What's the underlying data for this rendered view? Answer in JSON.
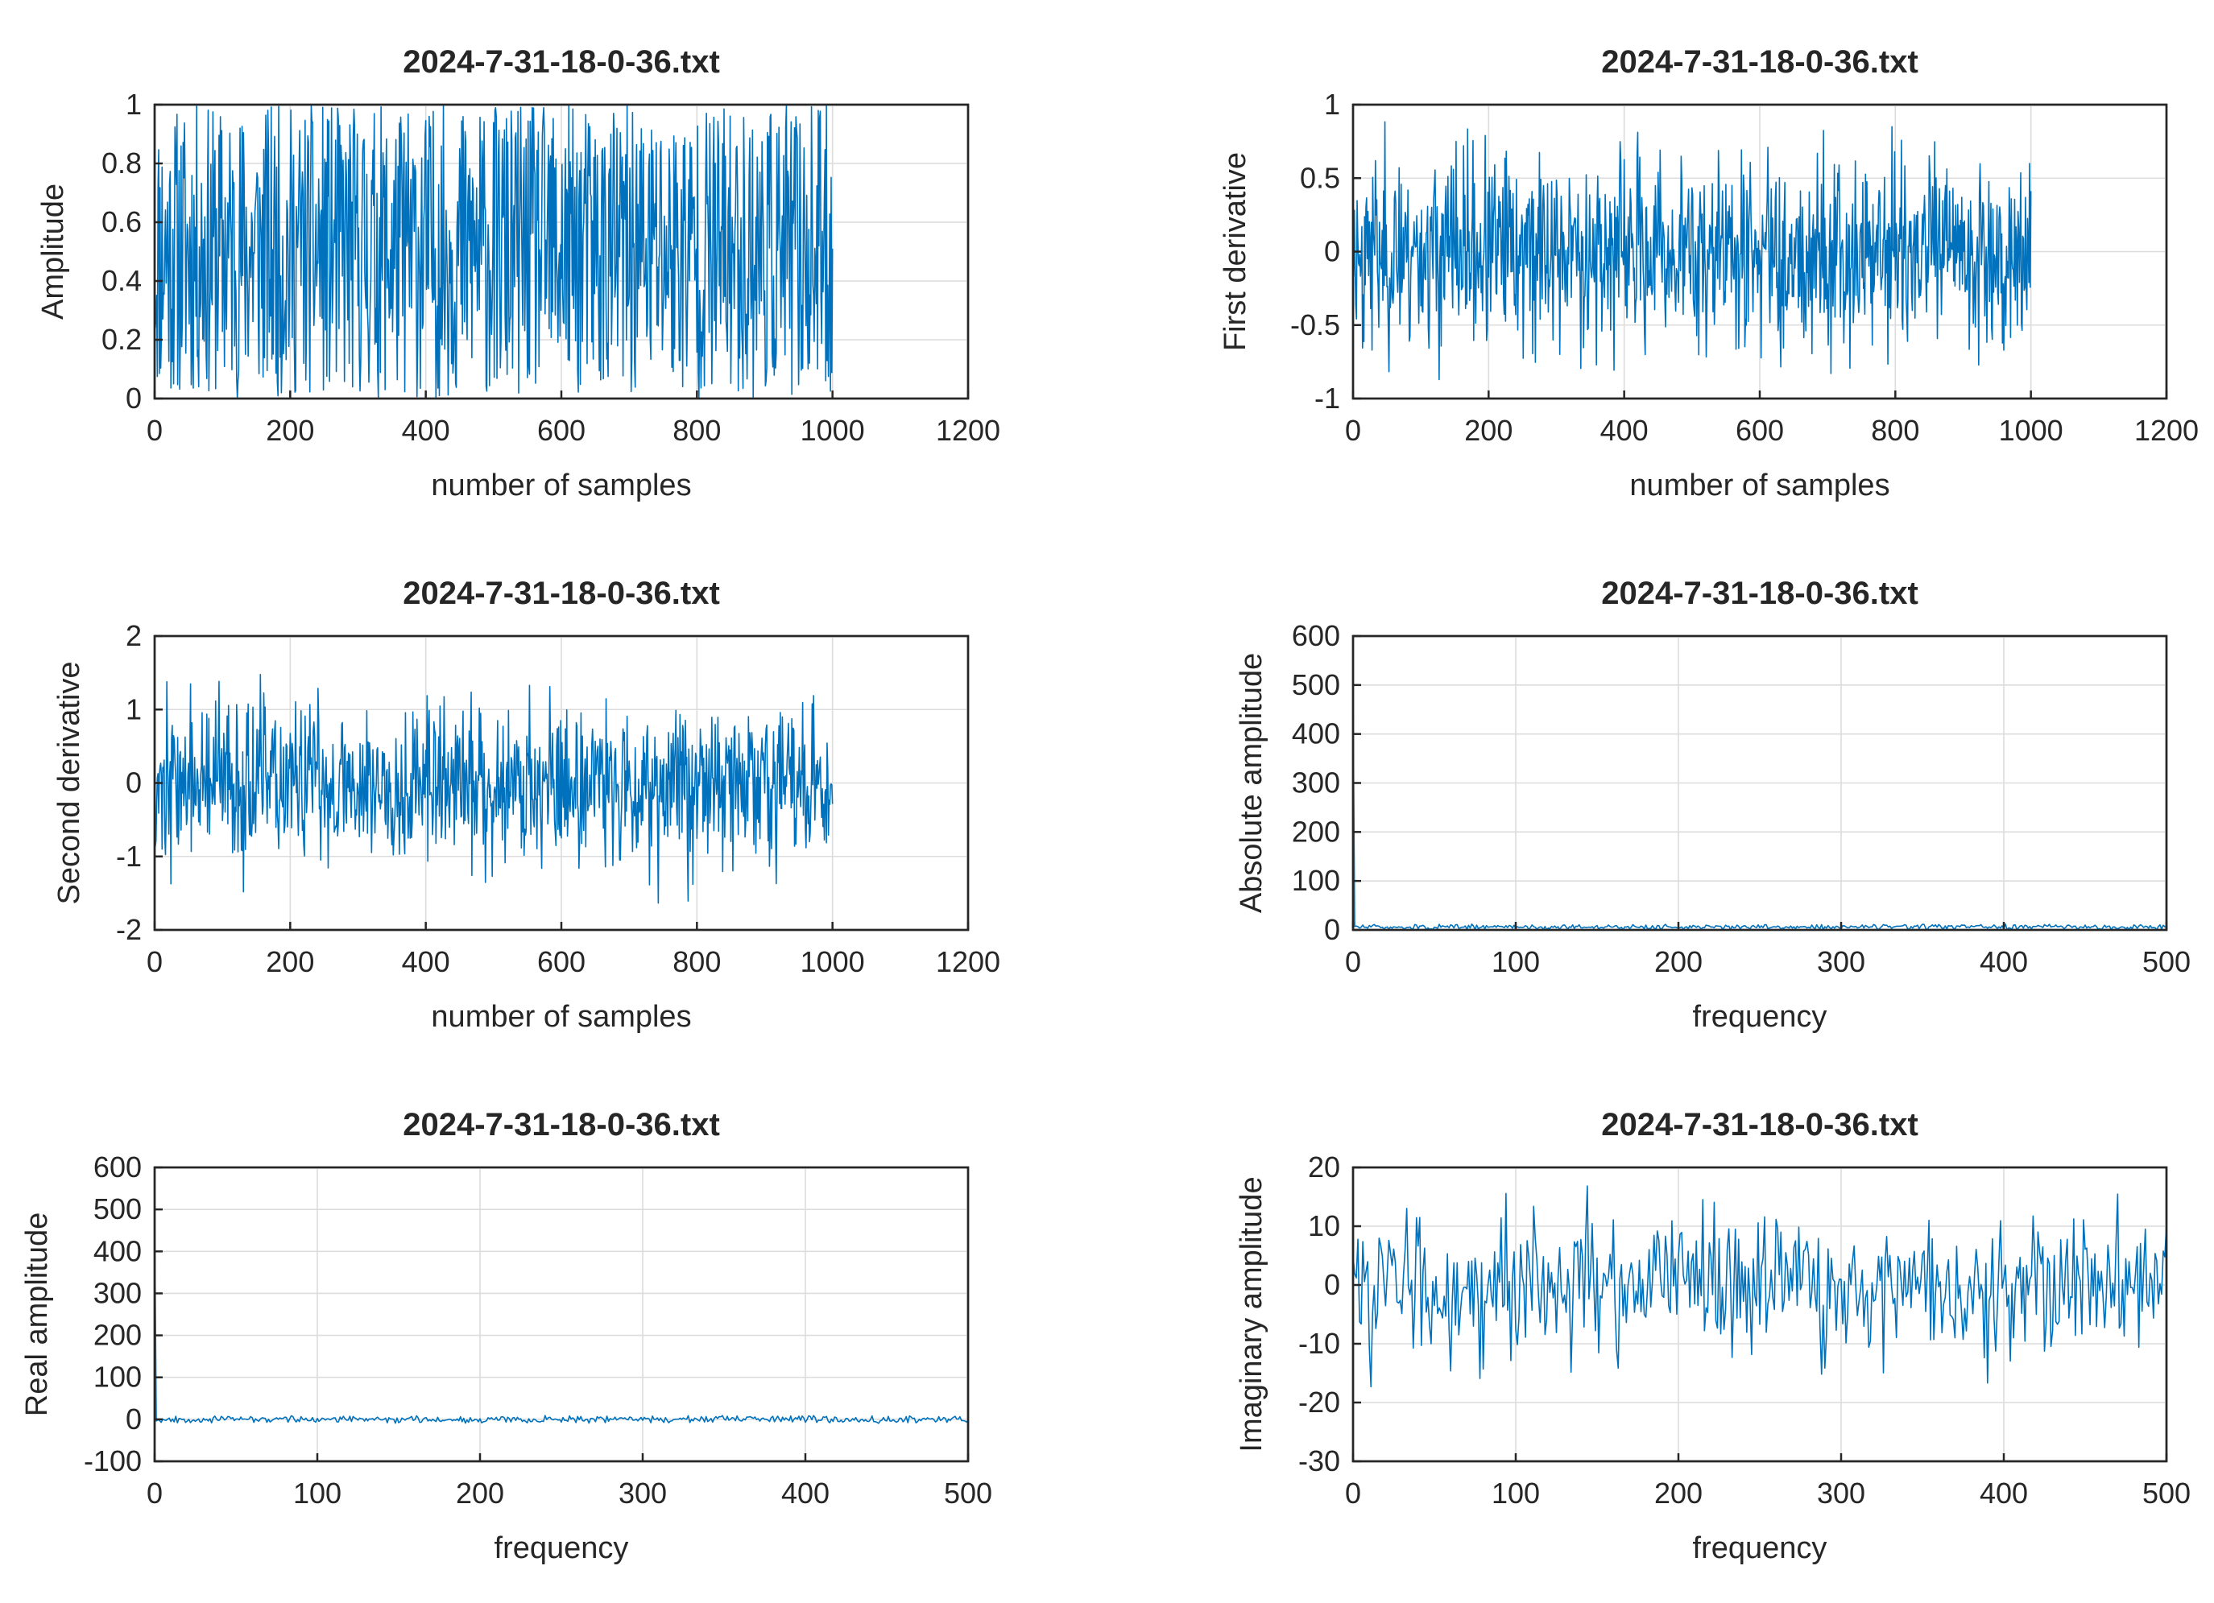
{
  "colors": {
    "series": "#0072BD",
    "axis": "#262626",
    "grid": "#dcdcdc"
  },
  "chart_data": [
    {
      "id": "amplitude",
      "type": "line",
      "title": "2024-7-31-18-0-36.txt",
      "xlabel": "number of samples",
      "ylabel": "Amplitude",
      "xlim": [
        0,
        1200
      ],
      "ylim": [
        0,
        1
      ],
      "xticks": [
        0,
        200,
        400,
        600,
        800,
        1000,
        1200
      ],
      "yticks": [
        0,
        0.2,
        0.4,
        0.6,
        0.8,
        1
      ],
      "xtick_labels": [
        "0",
        "200",
        "400",
        "600",
        "800",
        "1000",
        "1200"
      ],
      "ytick_labels": [
        "0",
        "0.2",
        "0.4",
        "0.6",
        "0.8",
        "1"
      ],
      "grid": true,
      "series": [
        {
          "generator": "uniform",
          "x_range": [
            1,
            1000
          ],
          "count": 1000,
          "y_range": [
            0,
            1
          ],
          "seed": 11
        }
      ]
    },
    {
      "id": "first-derivative",
      "type": "line",
      "title": "2024-7-31-18-0-36.txt",
      "xlabel": "number of samples",
      "ylabel": "First derivative",
      "xlim": [
        0,
        1200
      ],
      "ylim": [
        -1,
        1
      ],
      "xticks": [
        0,
        200,
        400,
        600,
        800,
        1000,
        1200
      ],
      "yticks": [
        -1,
        -0.5,
        0,
        0.5,
        1
      ],
      "xtick_labels": [
        "0",
        "200",
        "400",
        "600",
        "800",
        "1000",
        "1200"
      ],
      "ytick_labels": [
        "-1",
        "-0.5",
        "0",
        "0.5",
        "1"
      ],
      "grid": true,
      "series": [
        {
          "generator": "noise",
          "x_range": [
            1,
            1000
          ],
          "count": 1000,
          "center": 0,
          "spread": 0.33,
          "clip": [
            -0.97,
            0.97
          ],
          "seed": 23
        }
      ]
    },
    {
      "id": "second-derivative",
      "type": "line",
      "title": "2024-7-31-18-0-36.txt",
      "xlabel": "number of samples",
      "ylabel": "Second derivative",
      "xlim": [
        0,
        1200
      ],
      "ylim": [
        -2,
        2
      ],
      "xticks": [
        0,
        200,
        400,
        600,
        800,
        1000,
        1200
      ],
      "yticks": [
        -2,
        -1,
        0,
        1,
        2
      ],
      "xtick_labels": [
        "0",
        "200",
        "400",
        "600",
        "800",
        "1000",
        "1200"
      ],
      "ytick_labels": [
        "-2",
        "-1",
        "0",
        "1",
        "2"
      ],
      "grid": true,
      "series": [
        {
          "generator": "noise",
          "x_range": [
            1,
            1000
          ],
          "count": 1000,
          "center": 0,
          "spread": 0.55,
          "clip": [
            -1.65,
            1.75
          ],
          "seed": 37
        }
      ]
    },
    {
      "id": "absolute-amplitude",
      "type": "line",
      "title": "2024-7-31-18-0-36.txt",
      "xlabel": "frequency",
      "ylabel": "Absolute amplitude",
      "xlim": [
        0,
        500
      ],
      "ylim": [
        0,
        600
      ],
      "xticks": [
        0,
        100,
        200,
        300,
        400,
        500
      ],
      "yticks": [
        0,
        100,
        200,
        300,
        400,
        500,
        600
      ],
      "xtick_labels": [
        "0",
        "100",
        "200",
        "300",
        "400",
        "500"
      ],
      "ytick_labels": [
        "0",
        "100",
        "200",
        "300",
        "400",
        "500",
        "600"
      ],
      "grid": true,
      "series": [
        {
          "generator": "spectrum",
          "x_range": [
            0,
            500
          ],
          "count": 501,
          "peak": 500,
          "baseline": 6,
          "spread": 4,
          "seed": 51
        }
      ]
    },
    {
      "id": "real-amplitude",
      "type": "line",
      "title": "2024-7-31-18-0-36.txt",
      "xlabel": "frequency",
      "ylabel": "Real amplitude",
      "xlim": [
        0,
        500
      ],
      "ylim": [
        -100,
        600
      ],
      "xticks": [
        0,
        100,
        200,
        300,
        400,
        500
      ],
      "yticks": [
        -100,
        0,
        100,
        200,
        300,
        400,
        500,
        600
      ],
      "xtick_labels": [
        "0",
        "100",
        "200",
        "300",
        "400",
        "500"
      ],
      "ytick_labels": [
        "-100",
        "0",
        "100",
        "200",
        "300",
        "400",
        "500",
        "600"
      ],
      "grid": true,
      "series": [
        {
          "generator": "spectrum",
          "x_range": [
            0,
            500
          ],
          "count": 501,
          "peak": 500,
          "baseline": 0,
          "spread": 6,
          "seed": 67
        }
      ]
    },
    {
      "id": "imaginary-amplitude",
      "type": "line",
      "title": "2024-7-31-18-0-36.txt",
      "xlabel": "frequency",
      "ylabel": "Imaginary amplitude",
      "xlim": [
        0,
        500
      ],
      "ylim": [
        -30,
        20
      ],
      "xticks": [
        0,
        100,
        200,
        300,
        400,
        500
      ],
      "yticks": [
        -30,
        -20,
        -10,
        0,
        10,
        20
      ],
      "xtick_labels": [
        "0",
        "100",
        "200",
        "300",
        "400",
        "500"
      ],
      "ytick_labels": [
        "-30",
        "-20",
        "-10",
        "0",
        "10",
        "20"
      ],
      "grid": true,
      "series": [
        {
          "generator": "noise",
          "x_range": [
            0,
            500
          ],
          "count": 501,
          "center": 0,
          "spread": 6.2,
          "clip": [
            -22,
            17
          ],
          "seed": 83
        }
      ]
    }
  ]
}
